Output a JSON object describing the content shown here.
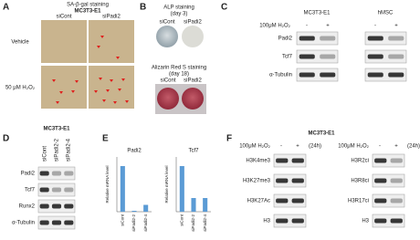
{
  "panel_a": {
    "letter": "A",
    "title": "SA-β-gal staining",
    "cell_line": "MC3T3-E1",
    "columns": [
      "siCont",
      "siPadi2"
    ],
    "rows": [
      "Vehicle",
      "50 μM H₂O₂"
    ]
  },
  "panel_b": {
    "letter": "B",
    "alp_title": "ALP staining",
    "alp_day": "(day 3)",
    "alp_columns": [
      "siCont",
      "siPadi2"
    ],
    "ars_title": "Alizarin Red S staining",
    "ars_day": "(day 18)",
    "ars_columns": [
      "siCont",
      "siPadi2"
    ]
  },
  "panel_c": {
    "letter": "C",
    "groups": [
      "MC3T3-E1",
      "hMSC"
    ],
    "treatment": "100μM H₂O₂",
    "conditions": [
      "-",
      "+"
    ],
    "rows": [
      "Padi2",
      "Tcf7",
      "α-Tubulin"
    ]
  },
  "panel_d": {
    "letter": "D",
    "cell_line": "MC3T3-E1",
    "columns": [
      "siCont",
      "siPadi2-2",
      "siPadi2-4"
    ],
    "rows": [
      "Padi2",
      "Tcf7",
      "Runx2",
      "α-Tubulin"
    ]
  },
  "panel_e": {
    "letter": "E",
    "charts": [
      {
        "type": "bar",
        "title": "Padi2",
        "y_label": "Relative mRNA level",
        "categories": [
          "siCont",
          "siPadi2-2",
          "siPadi2-4"
        ],
        "values": [
          1.0,
          0.02,
          0.15
        ],
        "color": "#5b9bd5",
        "ylim": [
          0,
          1.2
        ]
      },
      {
        "type": "bar",
        "title": "Tcf7",
        "y_label": "Relative mRNA level",
        "categories": [
          "siCont",
          "siPadi2-2",
          "siPadi2-4"
        ],
        "values": [
          1.0,
          0.3,
          0.3
        ],
        "color": "#5b9bd5",
        "ylim": [
          0,
          1.2
        ]
      }
    ]
  },
  "panel_f": {
    "letter": "F",
    "cell_line": "MC3T3-E1",
    "treatment": "100μM H₂O₂",
    "conditions": [
      "-",
      "+"
    ],
    "time": "(24h)",
    "left_rows": [
      "H3K4me3",
      "H3K27me3",
      "H3K27Ac",
      "H3"
    ],
    "right_rows": [
      "H3R2ci",
      "H3R8ci",
      "H3R17ci",
      "H3"
    ]
  }
}
